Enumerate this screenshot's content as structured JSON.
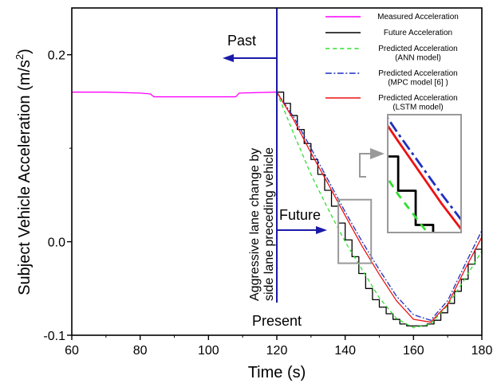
{
  "chart_data": {
    "type": "line",
    "xlabel": "Time (s)",
    "ylabel_main": "Subject Vehicle Acceleration (m/s",
    "ylabel_sup": "2",
    "ylabel_close": ")",
    "xlim": [
      60,
      180
    ],
    "ylim": [
      -0.1,
      0.25
    ],
    "xticks": [
      60,
      80,
      100,
      120,
      140,
      160,
      180
    ],
    "xtick_labels": [
      "60",
      "80",
      "100",
      "120",
      "140",
      "160",
      "180"
    ],
    "yticks": [
      -0.1,
      0.0,
      0.2
    ],
    "ytick_labels": [
      "-0.1",
      "0.0",
      "0.2"
    ],
    "grid": false,
    "legend_position": "top-right",
    "legend": [
      {
        "lines": [
          "Measured Acceleration"
        ],
        "color": "#ff00ff",
        "dash": "solid"
      },
      {
        "lines": [
          "Future Acceleration"
        ],
        "color": "#000000",
        "dash": "solid"
      },
      {
        "lines": [
          "Predicted Acceleration",
          "(ANN model)"
        ],
        "color": "#33dd33",
        "dash": "dashed"
      },
      {
        "lines": [
          "Predicted Acceleration",
          "(MPC model [6] )"
        ],
        "color": "#1f2fbf",
        "dash": "dashdot"
      },
      {
        "lines": [
          "Predicted Acceleration",
          "(LSTM model)"
        ],
        "color": "#ee1111",
        "dash": "solid"
      }
    ],
    "series": [
      {
        "name": "Measured Acceleration",
        "color": "#ff00ff",
        "style": "solid",
        "x": [
          60,
          70,
          80,
          83,
          84,
          100,
          108,
          109,
          120
        ],
        "y": [
          0.16,
          0.16,
          0.159,
          0.158,
          0.155,
          0.155,
          0.155,
          0.159,
          0.16
        ]
      },
      {
        "name": "Future Acceleration",
        "color": "#000000",
        "style": "step",
        "x": [
          120,
          122,
          124,
          126,
          128,
          130,
          132,
          134,
          136,
          138,
          140,
          142,
          144,
          146,
          148,
          150,
          152,
          154,
          156,
          158,
          160,
          162,
          164,
          166,
          168,
          170,
          172,
          174,
          176,
          178,
          180
        ],
        "y": [
          0.16,
          0.148,
          0.135,
          0.12,
          0.105,
          0.088,
          0.072,
          0.055,
          0.038,
          0.02,
          0.002,
          -0.016,
          -0.034,
          -0.05,
          -0.062,
          -0.07,
          -0.077,
          -0.083,
          -0.088,
          -0.09,
          -0.09,
          -0.09,
          -0.088,
          -0.084,
          -0.076,
          -0.066,
          -0.053,
          -0.04,
          -0.024,
          -0.008,
          0.007
        ]
      },
      {
        "name": "Predicted Acceleration (ANN model)",
        "color": "#33dd33",
        "style": "dashed",
        "x": [
          120,
          125,
          130,
          135,
          140,
          145,
          150,
          155,
          160,
          165,
          170,
          175,
          180
        ],
        "y": [
          0.16,
          0.115,
          0.072,
          0.035,
          0.0,
          -0.03,
          -0.06,
          -0.082,
          -0.092,
          -0.088,
          -0.068,
          -0.04,
          -0.01
        ]
      },
      {
        "name": "Predicted Acceleration (MPC model [6] )",
        "color": "#1f2fbf",
        "style": "dashdot",
        "x": [
          120,
          125,
          130,
          135,
          140,
          145,
          150,
          155,
          160,
          165,
          170,
          175,
          180
        ],
        "y": [
          0.16,
          0.133,
          0.1,
          0.066,
          0.032,
          0.0,
          -0.03,
          -0.058,
          -0.078,
          -0.084,
          -0.063,
          -0.025,
          0.012
        ]
      },
      {
        "name": "Predicted Acceleration (LSTM model)",
        "color": "#ee1111",
        "style": "solid",
        "x": [
          120,
          125,
          130,
          135,
          140,
          145,
          150,
          155,
          160,
          165,
          170,
          175,
          180
        ],
        "y": [
          0.16,
          0.13,
          0.095,
          0.062,
          0.028,
          -0.005,
          -0.035,
          -0.063,
          -0.083,
          -0.086,
          -0.067,
          -0.03,
          0.005
        ]
      }
    ],
    "annotations": {
      "past": "Past",
      "future": "Future",
      "present": "Present",
      "vertical_text": [
        "Aggressive lane change by",
        "side lane preceding vehicle"
      ]
    }
  }
}
